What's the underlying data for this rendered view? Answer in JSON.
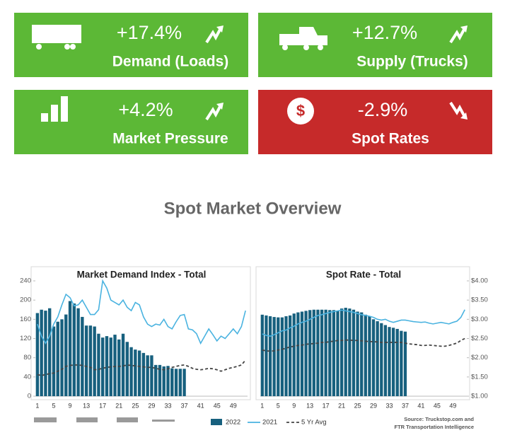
{
  "tiles": [
    {
      "value": "+17.4%",
      "label": "Demand (Loads)",
      "color": "#5cb836"
    },
    {
      "value": "+12.7%",
      "label": "Supply (Trucks)",
      "color": "#5cb836"
    },
    {
      "value": "+4.2%",
      "label": "Market Pressure",
      "color": "#5cb836"
    },
    {
      "value": "-2.9%",
      "label": "Spot Rates",
      "color": "#c62a2a",
      "symbol": "$"
    }
  ],
  "title": "Spot Market Overview",
  "source": [
    "Source: Truckstop.com and",
    "FTR Transportation Intelligence"
  ],
  "chart_data": [
    {
      "type": "bar",
      "title": "Market Demand Index - Total",
      "categories": [
        "1",
        null,
        null,
        null,
        "5",
        null,
        null,
        null,
        "9",
        null,
        null,
        null,
        "13",
        null,
        null,
        null,
        "17",
        null,
        null,
        null,
        "21",
        null,
        null,
        null,
        "25",
        null,
        null,
        null,
        "29",
        null,
        null,
        null,
        "33",
        null,
        null,
        null,
        "37",
        null,
        null,
        null,
        "41",
        null,
        null,
        null,
        "45",
        null,
        null,
        null,
        "49",
        null,
        null,
        null
      ],
      "ylim": [
        0,
        240
      ],
      "yticks": [
        0,
        40,
        80,
        120,
        160,
        200,
        240
      ],
      "series": [
        {
          "name": "2022",
          "type": "bar",
          "color": "#17607e",
          "values": [
            173,
            180,
            178,
            183,
            145,
            155,
            160,
            170,
            198,
            193,
            183,
            165,
            147,
            147,
            145,
            130,
            122,
            125,
            122,
            128,
            118,
            130,
            113,
            102,
            97,
            95,
            90,
            85,
            85,
            65,
            65,
            62,
            63,
            58,
            57,
            57,
            57,
            null,
            null,
            null,
            null,
            null,
            null,
            null,
            null,
            null,
            null,
            null,
            null,
            null,
            null,
            null
          ]
        },
        {
          "name": "2021",
          "type": "line",
          "color": "#4ab3e0",
          "values": [
            150,
            125,
            110,
            125,
            150,
            165,
            190,
            212,
            205,
            188,
            190,
            200,
            185,
            170,
            170,
            180,
            240,
            225,
            200,
            195,
            190,
            200,
            185,
            178,
            195,
            190,
            165,
            150,
            145,
            150,
            148,
            160,
            145,
            140,
            155,
            168,
            170,
            140,
            138,
            130,
            110,
            125,
            140,
            128,
            115,
            125,
            120,
            130,
            140,
            130,
            145,
            178
          ]
        },
        {
          "name": "5 Yr Avg",
          "type": "line",
          "dashed": true,
          "color": "#444444",
          "values": [
            45,
            43,
            45,
            47,
            48,
            52,
            56,
            62,
            64,
            65,
            65,
            64,
            62,
            60,
            55,
            56,
            58,
            60,
            61,
            62,
            62,
            63,
            65,
            64,
            63,
            62,
            61,
            60,
            60,
            58,
            56,
            55,
            57,
            60,
            62,
            64,
            65,
            62,
            58,
            56,
            55,
            56,
            58,
            57,
            55,
            52,
            55,
            58,
            60,
            62,
            65,
            75
          ]
        }
      ]
    },
    {
      "type": "bar",
      "title": "Spot Rate - Total",
      "categories": [
        "1",
        null,
        null,
        null,
        "5",
        null,
        null,
        null,
        "9",
        null,
        null,
        null,
        "13",
        null,
        null,
        null,
        "17",
        null,
        null,
        null,
        "21",
        null,
        null,
        null,
        "25",
        null,
        null,
        null,
        "29",
        null,
        null,
        null,
        "33",
        null,
        null,
        null,
        "37",
        null,
        null,
        null,
        "41",
        null,
        null,
        null,
        "45",
        null,
        null,
        null,
        "49",
        null,
        null,
        null
      ],
      "y2lim": [
        1,
        4
      ],
      "y2ticks": [
        {
          "value": 1,
          "label": "$1.00"
        },
        {
          "value": 1.5,
          "label": "$1.50"
        },
        {
          "value": 2,
          "label": "$2.00"
        },
        {
          "value": 2.5,
          "label": "$2.50"
        },
        {
          "value": 3,
          "label": "$3.00"
        },
        {
          "value": 3.5,
          "label": "$3.50"
        },
        {
          "value": 4,
          "label": "$4.00"
        }
      ],
      "series": [
        {
          "name": "2022",
          "type": "bar",
          "axis": "y2",
          "color": "#17607e",
          "values": [
            3.12,
            3.1,
            3.08,
            3.06,
            3.05,
            3.05,
            3.08,
            3.1,
            3.15,
            3.18,
            3.2,
            3.22,
            3.24,
            3.25,
            3.25,
            3.25,
            3.25,
            3.24,
            3.24,
            3.22,
            3.28,
            3.3,
            3.28,
            3.25,
            3.2,
            3.18,
            3.12,
            3.08,
            3.0,
            2.95,
            2.9,
            2.85,
            2.8,
            2.78,
            2.75,
            2.7,
            2.68,
            null,
            null,
            null,
            null,
            null,
            null,
            null,
            null,
            null,
            null,
            null,
            null,
            null,
            null,
            null
          ]
        },
        {
          "name": "2021",
          "type": "line",
          "axis": "y2",
          "color": "#4ab3e0",
          "values": [
            2.62,
            2.58,
            2.56,
            2.6,
            2.65,
            2.7,
            2.72,
            2.78,
            2.82,
            2.88,
            2.92,
            2.95,
            3.0,
            3.05,
            3.1,
            3.12,
            3.15,
            3.18,
            3.2,
            3.22,
            3.24,
            3.22,
            3.2,
            3.18,
            3.15,
            3.12,
            3.1,
            3.08,
            3.05,
            3.0,
            2.98,
            3.0,
            2.95,
            2.92,
            2.95,
            2.98,
            2.98,
            2.96,
            2.94,
            2.93,
            2.92,
            2.93,
            2.9,
            2.88,
            2.9,
            2.92,
            2.9,
            2.88,
            2.92,
            2.95,
            3.05,
            3.25
          ]
        },
        {
          "name": "5 Yr Avg",
          "type": "line",
          "dashed": true,
          "axis": "y2",
          "color": "#444444",
          "values": [
            2.2,
            2.18,
            2.17,
            2.18,
            2.2,
            2.22,
            2.25,
            2.28,
            2.3,
            2.32,
            2.33,
            2.35,
            2.36,
            2.37,
            2.38,
            2.4,
            2.4,
            2.42,
            2.43,
            2.45,
            2.45,
            2.46,
            2.46,
            2.45,
            2.45,
            2.44,
            2.43,
            2.42,
            2.42,
            2.41,
            2.4,
            2.4,
            2.4,
            2.4,
            2.4,
            2.4,
            2.38,
            2.36,
            2.35,
            2.34,
            2.32,
            2.32,
            2.33,
            2.32,
            2.31,
            2.3,
            2.3,
            2.32,
            2.35,
            2.38,
            2.45,
            2.5
          ]
        }
      ]
    }
  ]
}
